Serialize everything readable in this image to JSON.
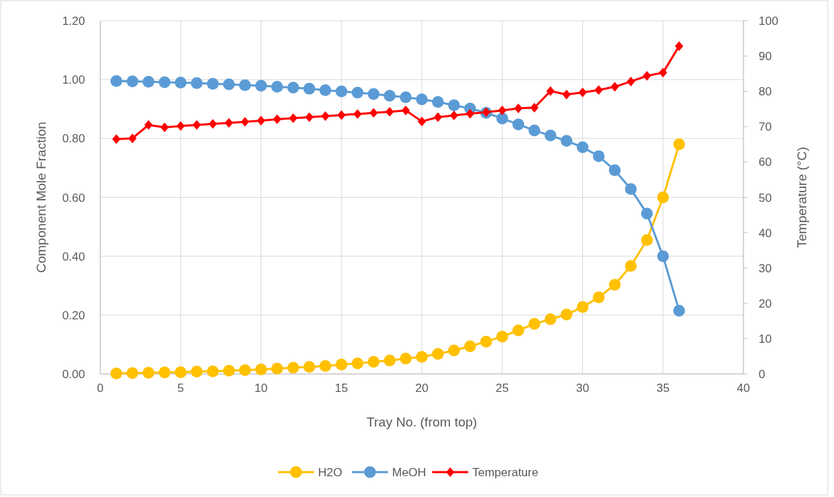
{
  "chart_data": {
    "type": "line",
    "xlabel": "Tray No. (from top)",
    "ylabel": "Component Mole Fraction",
    "y2label": "Temperature (°C)",
    "x": [
      1,
      2,
      3,
      4,
      5,
      6,
      7,
      8,
      9,
      10,
      11,
      12,
      13,
      14,
      15,
      16,
      17,
      18,
      19,
      20,
      21,
      22,
      23,
      24,
      25,
      26,
      27,
      28,
      29,
      30,
      31,
      32,
      33,
      34,
      35,
      36
    ],
    "xlim": [
      0,
      40
    ],
    "xticks": [
      0,
      5,
      10,
      15,
      20,
      25,
      30,
      35,
      40
    ],
    "ylim": [
      0,
      1.2
    ],
    "yticks": [
      {
        "value": 0,
        "label": "0.00"
      },
      {
        "value": 0.2,
        "label": "0.20"
      },
      {
        "value": 0.4,
        "label": "0.40"
      },
      {
        "value": 0.6,
        "label": "0.60"
      },
      {
        "value": 0.8,
        "label": "0.80"
      },
      {
        "value": 1,
        "label": "1.00"
      },
      {
        "value": 1.2,
        "label": "1.20"
      }
    ],
    "y2lim": [
      0,
      100
    ],
    "y2ticks": [
      0,
      10,
      20,
      30,
      40,
      50,
      60,
      70,
      80,
      90,
      100
    ],
    "grid": true,
    "legend": "bottom",
    "marker": "circle",
    "series": [
      {
        "name": "H2O",
        "color": "#ffc000",
        "values": [
          0.002,
          0.003,
          0.004,
          0.005,
          0.006,
          0.008,
          0.009,
          0.011,
          0.013,
          0.015,
          0.018,
          0.021,
          0.024,
          0.027,
          0.032,
          0.036,
          0.041,
          0.046,
          0.052,
          0.058,
          0.068,
          0.08,
          0.094,
          0.11,
          0.127,
          0.148,
          0.17,
          0.186,
          0.202,
          0.227,
          0.26,
          0.303,
          0.367,
          0.455,
          0.6,
          0.78
        ]
      },
      {
        "name": "MeOH",
        "color": "#5b9bd5",
        "values": [
          0.995,
          0.994,
          0.993,
          0.991,
          0.99,
          0.988,
          0.986,
          0.984,
          0.981,
          0.979,
          0.976,
          0.973,
          0.969,
          0.964,
          0.96,
          0.956,
          0.951,
          0.945,
          0.94,
          0.933,
          0.924,
          0.913,
          0.902,
          0.887,
          0.868,
          0.848,
          0.827,
          0.81,
          0.792,
          0.77,
          0.74,
          0.692,
          0.628,
          0.545,
          0.4,
          0.215
        ]
      },
      {
        "name": "Temperature",
        "color": "#ff0000",
        "axis": "y2",
        "marker": "diamond",
        "values": [
          66.5,
          66.7,
          70.5,
          69.8,
          70.2,
          70.5,
          70.8,
          71.1,
          71.4,
          71.7,
          72.1,
          72.4,
          72.7,
          73.0,
          73.3,
          73.6,
          73.9,
          74.2,
          74.6,
          71.5,
          72.7,
          73.2,
          73.7,
          74.1,
          74.6,
          75.2,
          75.4,
          80.1,
          79.1,
          79.7,
          80.4,
          81.3,
          82.8,
          84.4,
          85.3,
          92.8
        ]
      }
    ]
  }
}
